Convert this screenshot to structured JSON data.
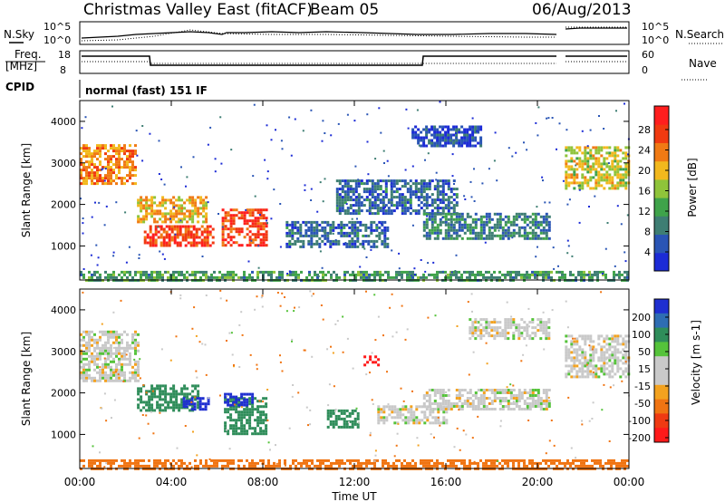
{
  "header": {
    "title": "Christmas Valley East (fitACF)",
    "beam": "Beam 05",
    "date": "06/Aug/2013"
  },
  "top_panels": {
    "nsky_label": "N.Sky",
    "nsearch_label": "N.Search",
    "noise_ticks": [
      "10^5",
      "10^0"
    ],
    "noise_ticks_right": [
      "10^5",
      "10^0"
    ],
    "freq_label_1": "Freq.",
    "freq_label_2": "[MHz]",
    "freq_ticks": [
      "18",
      "8"
    ],
    "nave_ticks": [
      "60",
      "0"
    ],
    "nave_label": "Nave",
    "cpid_label": "CPID",
    "cpid_value": "normal (fast) 151 IF"
  },
  "colors": {
    "power_scale": [
      "#1c2bd6",
      "#2a55b5",
      "#3e7e73",
      "#3fa34a",
      "#8fc43a",
      "#f2b81d",
      "#f07a14",
      "#f03a10",
      "#ff1e1e"
    ],
    "velocity_scale": [
      "#1f2fd0",
      "#2e6db3",
      "#2f8d5a",
      "#55c33a",
      "#c9c9c9",
      "#c9c9c9",
      "#f3a21f",
      "#f07412",
      "#ef3a12",
      "#ff1a1a"
    ]
  },
  "chart_data": [
    {
      "type": "heatmap",
      "title": "Power",
      "ylabel": "Slant Range [km]",
      "y_ticks": [
        "4000",
        "3000",
        "2000",
        "1000"
      ],
      "x_ticks": [
        "00:00",
        "04:00",
        "08:00",
        "12:00",
        "16:00",
        "20:00",
        "00:00"
      ],
      "colorbar_label": "Power [dB]",
      "colorbar_ticks": [
        "28",
        "24",
        "20",
        "16",
        "12",
        "8",
        "4"
      ],
      "ylim": [
        180,
        4500
      ],
      "xlim_hours": [
        0,
        24
      ],
      "echo_regions": [
        {
          "t": [
            0.0,
            2.4
          ],
          "r": [
            2500,
            3450
          ],
          "level": 22
        },
        {
          "t": [
            2.5,
            5.5
          ],
          "r": [
            1600,
            2200
          ],
          "level": 20
        },
        {
          "t": [
            2.8,
            5.8
          ],
          "r": [
            1000,
            1500
          ],
          "level": 26
        },
        {
          "t": [
            6.2,
            8.2
          ],
          "r": [
            1000,
            1900
          ],
          "level": 26
        },
        {
          "t": [
            9.0,
            13.5
          ],
          "r": [
            1000,
            1600
          ],
          "level": 8
        },
        {
          "t": [
            11.2,
            16.5
          ],
          "r": [
            1800,
            2600
          ],
          "level": 8
        },
        {
          "t": [
            15.0,
            20.5
          ],
          "r": [
            1200,
            1800
          ],
          "level": 10
        },
        {
          "t": [
            14.5,
            17.5
          ],
          "r": [
            3400,
            3900
          ],
          "level": 6
        },
        {
          "t": [
            21.2,
            24.0
          ],
          "r": [
            2400,
            3400
          ],
          "level": 18
        },
        {
          "t": [
            0.0,
            24.0
          ],
          "r": [
            200,
            400
          ],
          "level": 12
        }
      ]
    },
    {
      "type": "heatmap",
      "title": "Velocity",
      "ylabel": "Slant Range [km]",
      "y_ticks": [
        "4000",
        "3000",
        "2000",
        "1000"
      ],
      "x_ticks": [
        "00:00",
        "04:00",
        "08:00",
        "12:00",
        "16:00",
        "20:00",
        "00:00"
      ],
      "xlabel": "Time UT",
      "colorbar_label": "Velocity [m s-1]",
      "colorbar_ticks": [
        "200",
        "100",
        "50",
        "15",
        "-15",
        "-50",
        "-100",
        "-200"
      ],
      "ylim": [
        180,
        4500
      ],
      "xlim_hours": [
        0,
        24
      ],
      "echo_regions": [
        {
          "t": [
            0.0,
            2.6
          ],
          "r": [
            2300,
            3500
          ],
          "level": 0
        },
        {
          "t": [
            2.5,
            5.2
          ],
          "r": [
            1600,
            2200
          ],
          "level": 40
        },
        {
          "t": [
            4.5,
            5.6
          ],
          "r": [
            1600,
            1900
          ],
          "level": 180
        },
        {
          "t": [
            6.3,
            8.2
          ],
          "r": [
            1000,
            1900
          ],
          "level": 45
        },
        {
          "t": [
            6.3,
            7.5
          ],
          "r": [
            1700,
            2000
          ],
          "level": 160
        },
        {
          "t": [
            12.4,
            13.0
          ],
          "r": [
            2650,
            2900
          ],
          "level": -200
        },
        {
          "t": [
            10.8,
            12.2
          ],
          "r": [
            1200,
            1600
          ],
          "level": 40
        },
        {
          "t": [
            13.0,
            16.0
          ],
          "r": [
            1300,
            1700
          ],
          "level": 0
        },
        {
          "t": [
            15.0,
            20.5
          ],
          "r": [
            1600,
            2100
          ],
          "level": 0
        },
        {
          "t": [
            17.0,
            20.5
          ],
          "r": [
            3300,
            3800
          ],
          "level": 0
        },
        {
          "t": [
            21.2,
            24.0
          ],
          "r": [
            2400,
            3400
          ],
          "level": 0
        },
        {
          "t": [
            0.0,
            24.0
          ],
          "r": [
            200,
            400
          ],
          "level": -60
        }
      ]
    }
  ]
}
